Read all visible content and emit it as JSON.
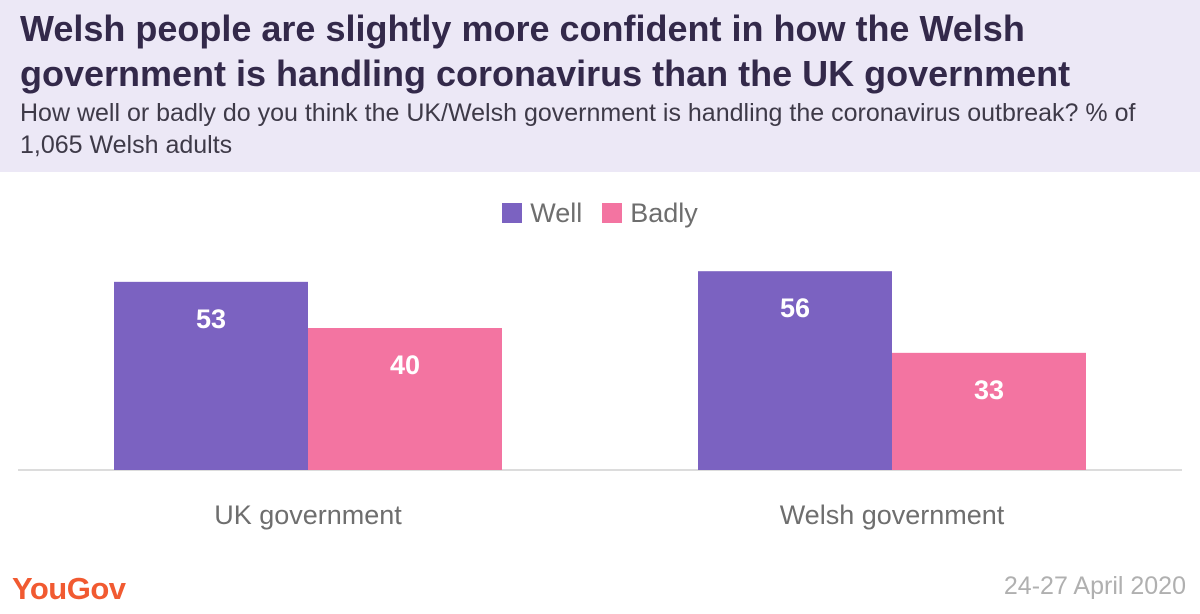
{
  "header": {
    "title": "Welsh people are slightly more confident in how the Welsh government is handling coronavirus than the UK government",
    "subtitle": "How well or badly do you think the UK/Welsh government is handling the coronavirus outbreak? % of 1,065 Welsh adults"
  },
  "legend": {
    "well": "Well",
    "badly": "Badly"
  },
  "footer": {
    "logo": "YouGov",
    "date": "24-27 April 2020"
  },
  "colors": {
    "well": "#7b62c1",
    "badly": "#f374a1",
    "header_bg": "#ece8f6",
    "brand": "#f15a31"
  },
  "chart_data": {
    "type": "bar",
    "categories": [
      "UK government",
      "Welsh government"
    ],
    "series": [
      {
        "name": "Well",
        "values": [
          53,
          56
        ]
      },
      {
        "name": "Badly",
        "values": [
          40,
          33
        ]
      }
    ],
    "ylim": [
      0,
      60
    ],
    "grid": false,
    "legend_position": "top-center",
    "data_labels": true
  }
}
